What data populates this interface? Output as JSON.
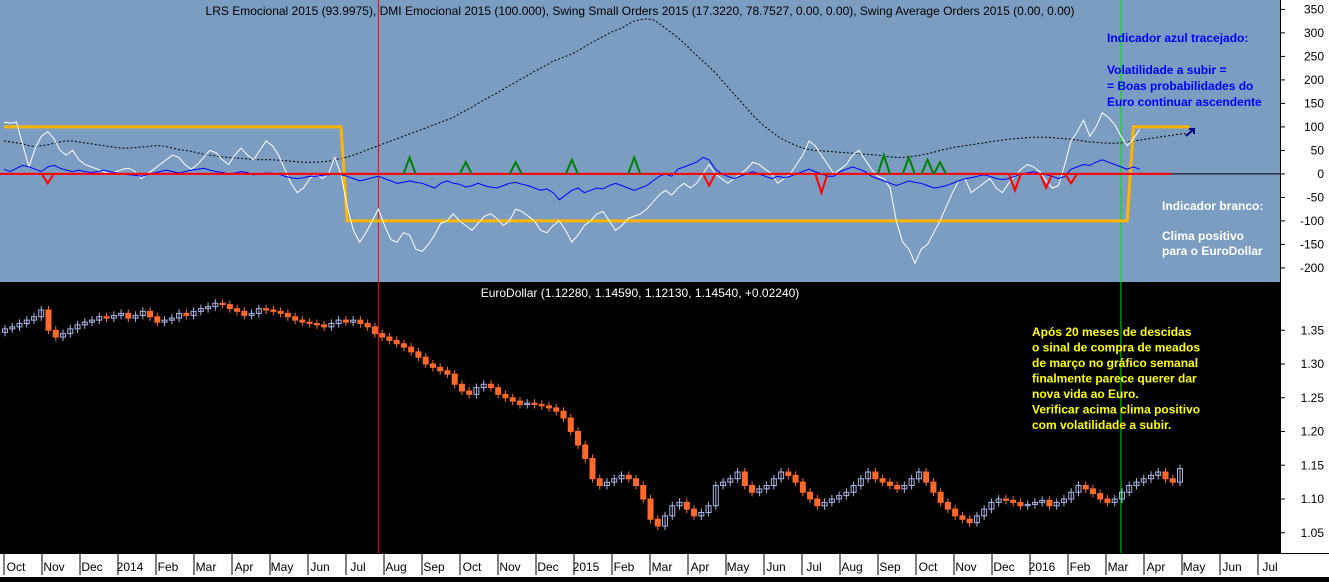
{
  "colors": {
    "top_background": "#7b9dc1",
    "bottom_background": "#000000",
    "white_line": "#ffffff",
    "blue_line": "#0000ff",
    "black_dashed": "#000000",
    "orange_line": "#ffb400",
    "red_zero_line": "#ff0000",
    "green_marker": "#008000",
    "red_marker": "#ff0000",
    "bull_candle": "#a9b4e6",
    "bear_candle": "#ff6a2a",
    "vline_red": "#ff0000",
    "vline_green": "#00e000",
    "annotation_blue": "#0000ff",
    "annotation_white": "#ffffff",
    "annotation_yellow": "#ffff00"
  },
  "chart_data": [
    {
      "type": "line",
      "title": "LRS Emocional 2015 (93.9975), DMI Emocional 2015 (100.000), Swing Small Orders 2015 (17.3220, 78.7527, 0.00, 0.00), Swing Average Orders 2015 (0.00, 0.00)",
      "ylim": [
        -230,
        370
      ],
      "yticks": [
        -200,
        -150,
        -100,
        -50,
        0,
        50,
        100,
        150,
        200,
        250,
        300,
        350
      ],
      "series": [
        {
          "key": "white",
          "values": [
            110,
            108,
            110,
            62,
            15,
            55,
            80,
            90,
            75,
            50,
            40,
            50,
            30,
            20,
            15,
            10,
            5,
            0,
            5,
            10,
            12,
            5,
            -10,
            0,
            10,
            20,
            30,
            40,
            35,
            20,
            10,
            20,
            35,
            50,
            45,
            30,
            20,
            40,
            55,
            40,
            30,
            50,
            70,
            60,
            40,
            10,
            -20,
            -40,
            -30,
            -10,
            0,
            -10,
            0,
            35,
            0,
            -70,
            -120,
            -145,
            -125,
            -100,
            -75,
            -110,
            -140,
            -145,
            -125,
            -130,
            -160,
            -165,
            -150,
            -130,
            -105,
            -100,
            -85,
            -100,
            -110,
            -120,
            -105,
            -90,
            -85,
            -95,
            -110,
            -100,
            -75,
            -80,
            -90,
            -100,
            -120,
            -125,
            -110,
            -100,
            -120,
            -145,
            -130,
            -110,
            -100,
            -85,
            -80,
            -100,
            -120,
            -110,
            -95,
            -90,
            -85,
            -75,
            -60,
            -45,
            -35,
            -45,
            -30,
            -20,
            -30,
            -20,
            0,
            20,
            0,
            -10,
            -20,
            -10,
            0,
            10,
            25,
            20,
            10,
            0,
            -20,
            -10,
            0,
            20,
            40,
            70,
            60,
            40,
            20,
            0,
            10,
            20,
            40,
            50,
            30,
            10,
            -5,
            -10,
            -30,
            -100,
            -145,
            -160,
            -190,
            -160,
            -150,
            -125,
            -100,
            -70,
            -40,
            -15,
            -10,
            -40,
            -30,
            -20,
            -10,
            -30,
            -40,
            -20,
            -5,
            10,
            20,
            15,
            5,
            -15,
            -30,
            -25,
            20,
            70,
            90,
            115,
            80,
            100,
            130,
            120,
            105,
            80,
            60,
            75,
            95
          ]
        },
        {
          "key": "blue",
          "values": [
            10,
            5,
            12,
            18,
            15,
            10,
            5,
            15,
            18,
            12,
            8,
            5,
            8,
            5,
            3,
            5,
            8,
            5,
            2,
            0,
            -2,
            -3,
            -5,
            -2,
            2,
            5,
            8,
            5,
            2,
            5,
            8,
            10,
            12,
            8,
            5,
            3,
            0,
            2,
            5,
            3,
            -2,
            0,
            2,
            1,
            0,
            -5,
            -8,
            -10,
            -8,
            -5,
            -5,
            -3,
            -2,
            0,
            -2,
            -5,
            -10,
            -15,
            -12,
            -8,
            -5,
            -10,
            -15,
            -20,
            -18,
            -15,
            -18,
            -20,
            -25,
            -30,
            -20,
            -15,
            -20,
            -22,
            -28,
            -25,
            -20,
            -25,
            -28,
            -30,
            -25,
            -20,
            -18,
            -22,
            -25,
            -30,
            -35,
            -32,
            -40,
            -55,
            -45,
            -35,
            -30,
            -40,
            -35,
            -30,
            -32,
            -25,
            -20,
            -25,
            -30,
            -35,
            -30,
            -25,
            -15,
            -5,
            0,
            -5,
            10,
            15,
            20,
            25,
            35,
            30,
            10,
            0,
            -5,
            -10,
            -5,
            0,
            5,
            0,
            -5,
            -10,
            -5,
            -8,
            -5,
            0,
            5,
            10,
            5,
            0,
            -5,
            -5,
            5,
            10,
            15,
            10,
            5,
            -5,
            -10,
            -15,
            -20,
            -25,
            -20,
            -15,
            -18,
            -20,
            -25,
            -30,
            -28,
            -25,
            -20,
            -15,
            -10,
            -8,
            -5,
            -2,
            -5,
            -10,
            -12,
            -10,
            -5,
            0,
            2,
            5,
            0,
            -2,
            -5,
            -10,
            -5,
            10,
            15,
            20,
            18,
            25,
            30,
            25,
            20,
            15,
            10,
            15,
            10
          ]
        },
        {
          "key": "black_dashed",
          "values": [
            70,
            68,
            66,
            64,
            60,
            58,
            60,
            62,
            65,
            68,
            70,
            70,
            68,
            66,
            64,
            62,
            60,
            58,
            56,
            55,
            55,
            56,
            57,
            58,
            60,
            60,
            58,
            55,
            52,
            50,
            48,
            45,
            42,
            40,
            38,
            36,
            35,
            34,
            33,
            32,
            31,
            30,
            30,
            30,
            29,
            28,
            27,
            26,
            25,
            25,
            25,
            26,
            27,
            30,
            33,
            36,
            40,
            45,
            50,
            55,
            60,
            65,
            70,
            75,
            80,
            85,
            90,
            95,
            100,
            105,
            110,
            115,
            120,
            128,
            135,
            142,
            150,
            158,
            165,
            172,
            180,
            188,
            195,
            203,
            210,
            218,
            225,
            232,
            240,
            245,
            250,
            255,
            262,
            270,
            278,
            285,
            292,
            300,
            305,
            310,
            318,
            325,
            328,
            330,
            328,
            320,
            310,
            300,
            290,
            278,
            265,
            252,
            240,
            228,
            215,
            200,
            185,
            170,
            155,
            140,
            125,
            112,
            100,
            90,
            80,
            72,
            66,
            60,
            55,
            52,
            50,
            49,
            48,
            47,
            46,
            45,
            44,
            43,
            42,
            41,
            40,
            38,
            36,
            35,
            35,
            36,
            38,
            40,
            43,
            46,
            50,
            53,
            56,
            58,
            60,
            62,
            64,
            66,
            68,
            70,
            72,
            74,
            75,
            76,
            77,
            78,
            78,
            78,
            77,
            76,
            75,
            74,
            72,
            70,
            68,
            67,
            66,
            65,
            65,
            66,
            68,
            70,
            72,
            74,
            76,
            78,
            80,
            82,
            84,
            85,
            86
          ]
        },
        {
          "key": "orange",
          "values": [
            100,
            100,
            100,
            100,
            100,
            100,
            100,
            100,
            100,
            100,
            100,
            100,
            100,
            100,
            100,
            100,
            100,
            100,
            100,
            100,
            100,
            100,
            100,
            100,
            100,
            100,
            100,
            100,
            100,
            100,
            100,
            100,
            100,
            100,
            100,
            100,
            100,
            100,
            100,
            100,
            100,
            100,
            100,
            100,
            100,
            100,
            100,
            100,
            100,
            100,
            100,
            100,
            100,
            100,
            100,
            -100,
            -100,
            -100,
            -100,
            -100,
            -100,
            -100,
            -100,
            -100,
            -100,
            -100,
            -100,
            -100,
            -100,
            -100,
            -100,
            -100,
            -100,
            -100,
            -100,
            -100,
            -100,
            -100,
            -100,
            -100,
            -100,
            -100,
            -100,
            -100,
            -100,
            -100,
            -100,
            -100,
            -100,
            -100,
            -100,
            -100,
            -100,
            -100,
            -100,
            -100,
            -100,
            -100,
            -100,
            -100,
            -100,
            -100,
            -100,
            -100,
            -100,
            -100,
            -100,
            -100,
            -100,
            -100,
            -100,
            -100,
            -100,
            -100,
            -100,
            -100,
            -100,
            -100,
            -100,
            -100,
            -100,
            -100,
            -100,
            -100,
            -100,
            -100,
            -100,
            -100,
            -100,
            -100,
            -100,
            -100,
            -100,
            -100,
            -100,
            -100,
            -100,
            -100,
            -100,
            -100,
            -100,
            -100,
            -100,
            -100,
            -100,
            -100,
            -100,
            -100,
            -100,
            -100,
            -100,
            -100,
            -100,
            -100,
            -100,
            -100,
            -100,
            -100,
            -100,
            -100,
            -100,
            -100,
            -100,
            -100,
            -100,
            -100,
            -100,
            -100,
            -100,
            -100,
            -100,
            -100,
            -100,
            -100,
            -100,
            -100,
            -100,
            -100,
            -100,
            -100,
            -100,
            100,
            100,
            100,
            100,
            100,
            100,
            100,
            100,
            100,
            100
          ]
        }
      ],
      "markers_up": [
        [
          65,
          35
        ],
        [
          74,
          25
        ],
        [
          82,
          25
        ],
        [
          91,
          30
        ],
        [
          101,
          35
        ],
        [
          141,
          40
        ],
        [
          145,
          35
        ],
        [
          148,
          30
        ],
        [
          150,
          25
        ]
      ],
      "markers_down": [
        [
          7,
          -20
        ],
        [
          113,
          -25
        ],
        [
          131,
          -40
        ],
        [
          162,
          -35
        ],
        [
          167,
          -30
        ],
        [
          171,
          -20
        ]
      ],
      "annotations": [
        {
          "key": "top_blue",
          "lines": [
            "Indicador azul tracejado:",
            "",
            "Volatilidade a subir =",
            "= Boas probabilidades do",
            "Euro continuar ascendente"
          ]
        },
        {
          "key": "top_white",
          "lines": [
            "Indicador branco:",
            "",
            "Clima positivo",
            "para o EuroDollar"
          ]
        }
      ]
    },
    {
      "type": "candlestick",
      "title": "EuroDollar (1.12280, 1.14590, 1.12130, 1.14540, +0.02240)",
      "ylim": [
        1.02,
        1.42
      ],
      "yticks": [
        1.05,
        1.1,
        1.15,
        1.2,
        1.25,
        1.3,
        1.35
      ],
      "x": [
        "Oct",
        "Nov",
        "Dec",
        "2014",
        "Feb",
        "Mar",
        "Apr",
        "May",
        "Jun",
        "Jul",
        "Aug",
        "Sep",
        "Oct",
        "Nov",
        "Dec",
        "2015",
        "Feb",
        "Mar",
        "Apr",
        "May",
        "Jun",
        "Jul",
        "Aug",
        "Sep",
        "Oct",
        "Nov",
        "Dec",
        "2016",
        "Feb",
        "Mar",
        "Apr",
        "May",
        "Jun",
        "Jul"
      ],
      "closes": [
        1.352,
        1.355,
        1.36,
        1.365,
        1.37,
        1.38,
        1.35,
        1.34,
        1.345,
        1.352,
        1.358,
        1.362,
        1.365,
        1.37,
        1.368,
        1.372,
        1.375,
        1.368,
        1.372,
        1.378,
        1.37,
        1.362,
        1.365,
        1.368,
        1.375,
        1.372,
        1.378,
        1.382,
        1.385,
        1.39,
        1.388,
        1.382,
        1.378,
        1.372,
        1.375,
        1.382,
        1.38,
        1.378,
        1.375,
        1.37,
        1.365,
        1.362,
        1.36,
        1.358,
        1.355,
        1.36,
        1.365,
        1.362,
        1.365,
        1.36,
        1.355,
        1.345,
        1.34,
        1.335,
        1.33,
        1.325,
        1.318,
        1.31,
        1.3,
        1.295,
        1.29,
        1.285,
        1.27,
        1.26,
        1.255,
        1.265,
        1.27,
        1.265,
        1.255,
        1.25,
        1.245,
        1.24,
        1.242,
        1.24,
        1.238,
        1.235,
        1.23,
        1.22,
        1.2,
        1.18,
        1.16,
        1.13,
        1.12,
        1.125,
        1.13,
        1.135,
        1.13,
        1.12,
        1.1,
        1.07,
        1.06,
        1.075,
        1.09,
        1.095,
        1.085,
        1.075,
        1.08,
        1.09,
        1.12,
        1.125,
        1.13,
        1.14,
        1.12,
        1.11,
        1.115,
        1.12,
        1.13,
        1.14,
        1.135,
        1.125,
        1.11,
        1.1,
        1.09,
        1.095,
        1.1,
        1.105,
        1.11,
        1.12,
        1.13,
        1.14,
        1.13,
        1.125,
        1.12,
        1.115,
        1.12,
        1.13,
        1.14,
        1.125,
        1.11,
        1.095,
        1.085,
        1.075,
        1.07,
        1.065,
        1.075,
        1.085,
        1.095,
        1.1,
        1.098,
        1.095,
        1.09,
        1.092,
        1.095,
        1.098,
        1.09,
        1.095,
        1.1,
        1.11,
        1.12,
        1.115,
        1.108,
        1.1,
        1.095,
        1.1,
        1.11,
        1.12,
        1.125,
        1.13,
        1.135,
        1.14,
        1.13,
        1.125,
        1.145
      ]
    }
  ],
  "footnote": {
    "lines": [
      "Após 20 meses de descidas",
      "o sinal de compra de meados",
      "de março no gráfico semanal",
      "finalmente parece querer dar",
      "nova vida ao Euro.",
      "Verificar acima clima positivo",
      "com volatilidade a subir."
    ]
  }
}
